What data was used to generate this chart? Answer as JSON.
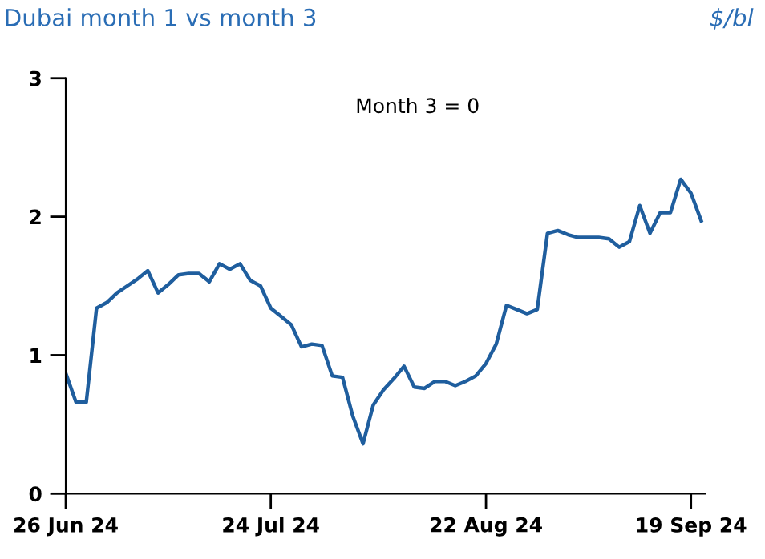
{
  "chart_data": {
    "type": "line",
    "title": "Dubai month 1 vs month 3",
    "ylabel": "$/bl",
    "annotations": [
      "Month 3 = 0"
    ],
    "categories": [
      "26 Jun 24",
      null,
      null,
      null,
      null,
      null,
      null,
      null,
      null,
      null,
      null,
      null,
      null,
      null,
      null,
      null,
      null,
      null,
      null,
      null,
      "24 Jul 24",
      null,
      null,
      null,
      null,
      null,
      null,
      null,
      null,
      null,
      null,
      null,
      null,
      null,
      null,
      null,
      null,
      null,
      null,
      null,
      null,
      "22 Aug 24",
      null,
      null,
      null,
      null,
      null,
      null,
      null,
      null,
      null,
      null,
      null,
      null,
      null,
      null,
      null,
      null,
      null,
      null,
      null,
      "19 Sep 24",
      null
    ],
    "series": [
      {
        "color": "#1f5e9e",
        "values": [
          0.87,
          0.66,
          0.66,
          1.34,
          1.38,
          1.45,
          1.5,
          1.55,
          1.61,
          1.45,
          1.51,
          1.58,
          1.59,
          1.59,
          1.53,
          1.66,
          1.62,
          1.66,
          1.54,
          1.5,
          1.34,
          1.28,
          1.22,
          1.06,
          1.08,
          1.07,
          0.85,
          0.84,
          0.56,
          0.36,
          0.64,
          0.75,
          0.83,
          0.92,
          0.77,
          0.76,
          0.81,
          0.81,
          0.78,
          0.81,
          0.85,
          0.94,
          1.08,
          1.36,
          1.33,
          1.3,
          1.33,
          1.88,
          1.9,
          1.87,
          1.85,
          1.85,
          1.85,
          1.84,
          1.78,
          1.82,
          2.08,
          1.88,
          2.03,
          2.03,
          2.27,
          2.17,
          1.97
        ]
      }
    ],
    "ylim": [
      0,
      3
    ],
    "yticks": [
      0,
      1,
      2,
      3
    ],
    "grid": false,
    "legend": false,
    "marker": "none",
    "line_style": "solid"
  }
}
